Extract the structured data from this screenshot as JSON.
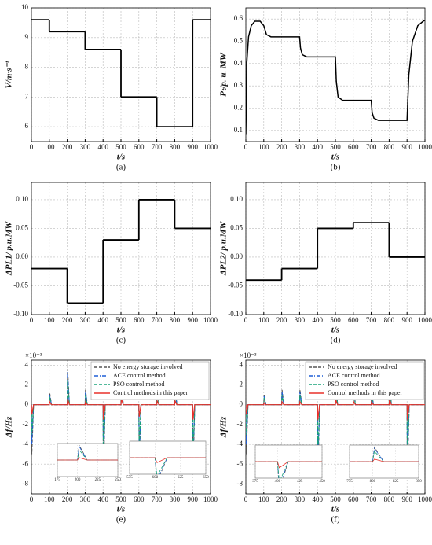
{
  "chart_data": [
    {
      "type": "step",
      "caption": "(a)",
      "ylabel": "V/m·s⁻¹",
      "xlabel": "t/s",
      "color": "#000000",
      "grid": true,
      "x": [
        0,
        100,
        300,
        500,
        700,
        900
      ],
      "values": [
        9.6,
        9.2,
        8.6,
        7.0,
        6.0,
        9.6
      ],
      "xlim": [
        0,
        1000
      ],
      "xticks": [
        0,
        100,
        200,
        300,
        400,
        500,
        600,
        700,
        800,
        900,
        1000
      ],
      "ylim": [
        5.5,
        10
      ],
      "yticks": [
        6,
        7,
        8,
        9,
        10
      ]
    },
    {
      "type": "line",
      "caption": "(b)",
      "ylabel": "Pₜ/p. u. MW",
      "xlabel": "t/s",
      "color": "#000000",
      "grid": true,
      "x": [
        0,
        5,
        15,
        30,
        50,
        80,
        100,
        115,
        140,
        300,
        305,
        315,
        340,
        500,
        505,
        515,
        540,
        700,
        705,
        715,
        740,
        900,
        910,
        930,
        960,
        990,
        1000
      ],
      "values": [
        0.08,
        0.4,
        0.52,
        0.57,
        0.59,
        0.59,
        0.57,
        0.53,
        0.52,
        0.52,
        0.47,
        0.44,
        0.43,
        0.43,
        0.32,
        0.25,
        0.235,
        0.235,
        0.18,
        0.155,
        0.145,
        0.145,
        0.35,
        0.5,
        0.57,
        0.59,
        0.595
      ],
      "xlim": [
        0,
        1000
      ],
      "xticks": [
        0,
        100,
        200,
        300,
        400,
        500,
        600,
        700,
        800,
        900,
        1000
      ],
      "ylim": [
        0.05,
        0.65
      ],
      "yticks": [
        {
          "value": 0.1,
          "label": "0.1"
        },
        {
          "value": 0.2,
          "label": "0.2"
        },
        {
          "value": 0.3,
          "label": "0.3"
        },
        {
          "value": 0.4,
          "label": "0.4"
        },
        {
          "value": 0.5,
          "label": "0.5"
        },
        {
          "value": 0.6,
          "label": "0.6"
        }
      ]
    },
    {
      "type": "step",
      "caption": "(c)",
      "ylabel": "ΔPL1/ p.u.MW",
      "xlabel": "t/s",
      "color": "#000000",
      "grid": true,
      "x": [
        0,
        200,
        400,
        600,
        800
      ],
      "values": [
        -0.02,
        -0.08,
        0.03,
        0.1,
        0.05
      ],
      "xlim": [
        0,
        1000
      ],
      "xticks": [
        0,
        100,
        200,
        300,
        400,
        500,
        600,
        700,
        800,
        900,
        1000
      ],
      "ylim": [
        -0.1,
        0.13
      ],
      "yticks": [
        {
          "value": -0.1,
          "label": "-0.10"
        },
        {
          "value": -0.05,
          "label": "-0.05"
        },
        {
          "value": 0,
          "label": "0.00"
        },
        {
          "value": 0.05,
          "label": "0.05"
        },
        {
          "value": 0.1,
          "label": "0.10"
        }
      ]
    },
    {
      "type": "step",
      "caption": "(d)",
      "ylabel": "ΔPL2/ p.u.MW",
      "xlabel": "t/s",
      "color": "#000000",
      "grid": true,
      "x": [
        0,
        200,
        400,
        600,
        800
      ],
      "values": [
        -0.04,
        -0.02,
        0.05,
        0.06,
        0.0
      ],
      "xlim": [
        0,
        1000
      ],
      "xticks": [
        0,
        100,
        200,
        300,
        400,
        500,
        600,
        700,
        800,
        900,
        1000
      ],
      "ylim": [
        -0.1,
        0.13
      ],
      "yticks": [
        {
          "value": -0.1,
          "label": "-0.10"
        },
        {
          "value": -0.05,
          "label": "-0.05"
        },
        {
          "value": 0,
          "label": "0.00"
        },
        {
          "value": 0.05,
          "label": "0.05"
        },
        {
          "value": 0.1,
          "label": "0.10"
        }
      ]
    },
    {
      "type": "line",
      "caption": "(e)",
      "ylabel": "Δf/Hz",
      "xlabel": "t/s",
      "y_multiplier": "×10⁻³",
      "grid": true,
      "legend": "upper right",
      "x": [
        0,
        2,
        12,
        100,
        102,
        112,
        200,
        202,
        212,
        300,
        302,
        312,
        400,
        402,
        412,
        500,
        502,
        512,
        600,
        602,
        612,
        700,
        702,
        712,
        800,
        802,
        812,
        900,
        902,
        912,
        1000
      ],
      "series": [
        {
          "name": "No energy storage involved",
          "color": "#555555",
          "dash": "dashed",
          "values": [
            0,
            -5,
            0,
            0,
            1.2,
            0,
            0,
            3.6,
            0,
            0,
            1.5,
            0,
            0,
            -7,
            0,
            0,
            3.6,
            0,
            0,
            -6,
            0,
            0,
            2,
            0,
            0,
            2,
            0,
            0,
            -7,
            0,
            0
          ]
        },
        {
          "name": "ACE control method",
          "color": "#1f5fd6",
          "dash": "dashdot",
          "values": [
            0,
            -4,
            0,
            0,
            1,
            0,
            0,
            3.3,
            0,
            0,
            1.3,
            0,
            0,
            -6,
            0,
            0,
            3.3,
            0,
            0,
            -5.5,
            0,
            0,
            1.8,
            0,
            0,
            1.8,
            0,
            0,
            -6,
            0,
            0
          ]
        },
        {
          "name": "PSO control method",
          "color": "#1aa37a",
          "dash": "dashed",
          "values": [
            0,
            -3,
            0,
            0,
            0.8,
            0,
            0,
            2.5,
            0,
            0,
            1,
            0,
            0,
            -5,
            0,
            0,
            2.5,
            0,
            0,
            -4.5,
            0,
            0,
            1.5,
            0,
            0,
            1.5,
            0,
            0,
            -5,
            0,
            0
          ]
        },
        {
          "name": "Control methods in this paper",
          "color": "#e8302a",
          "dash": "solid",
          "values": [
            0,
            -1,
            0,
            0,
            0.3,
            0,
            0,
            0.6,
            0,
            0,
            0.3,
            0,
            0,
            -1.5,
            0,
            0,
            0.6,
            0,
            0,
            -1.2,
            0,
            0,
            0.4,
            0,
            0,
            0.4,
            0,
            0,
            -1.5,
            0,
            0
          ]
        }
      ],
      "insets": [
        {
          "xlim": [
            175,
            250
          ],
          "xticks": [
            175,
            200,
            225,
            250
          ],
          "ylim": [
            -4,
            4
          ]
        },
        {
          "xlim": [
            575,
            650
          ],
          "xticks": [
            575,
            600,
            625,
            650
          ],
          "ylim": [
            -4,
            4
          ]
        }
      ],
      "xlim": [
        0,
        1000
      ],
      "xticks": [
        0,
        100,
        200,
        300,
        400,
        500,
        600,
        700,
        800,
        900,
        1000
      ],
      "ylim": [
        -9,
        4.5
      ],
      "yticks": [
        -8,
        -6,
        -4,
        -2,
        0,
        2,
        4
      ]
    },
    {
      "type": "line",
      "caption": "(f)",
      "ylabel": "Δf/Hz",
      "xlabel": "t/s",
      "y_multiplier": "×10⁻³",
      "grid": true,
      "legend": "upper right",
      "x": [
        0,
        2,
        12,
        100,
        102,
        112,
        200,
        202,
        212,
        300,
        302,
        312,
        400,
        402,
        412,
        500,
        502,
        512,
        600,
        602,
        612,
        700,
        702,
        712,
        800,
        802,
        812,
        900,
        902,
        912,
        1000
      ],
      "series": [
        {
          "name": "No energy storage involved",
          "color": "#555555",
          "dash": "dashed",
          "values": [
            0,
            -5,
            0,
            0,
            1,
            0,
            0,
            1.5,
            0,
            0,
            1.5,
            0,
            0,
            -7,
            0,
            0,
            3,
            0,
            0,
            1.5,
            0,
            0,
            1.5,
            0,
            0,
            3.5,
            0,
            0,
            -7,
            0,
            0
          ]
        },
        {
          "name": "ACE control method",
          "color": "#1f5fd6",
          "dash": "dashdot",
          "values": [
            0,
            -4,
            0,
            0,
            0.9,
            0,
            0,
            1.3,
            0,
            0,
            1.3,
            0,
            0,
            -6,
            0,
            0,
            2.7,
            0,
            0,
            1.3,
            0,
            0,
            1.3,
            0,
            0,
            3.2,
            0,
            0,
            -6,
            0,
            0
          ]
        },
        {
          "name": "PSO control method",
          "color": "#1aa37a",
          "dash": "dashed",
          "values": [
            0,
            -3,
            0,
            0,
            0.7,
            0,
            0,
            1,
            0,
            0,
            1,
            0,
            0,
            -5,
            0,
            0,
            2,
            0,
            0,
            1,
            0,
            0,
            1,
            0,
            0,
            2.5,
            0,
            0,
            -5,
            0,
            0
          ]
        },
        {
          "name": "Control methods in this paper",
          "color": "#e8302a",
          "dash": "solid",
          "values": [
            0,
            -1,
            0,
            0,
            0.2,
            0,
            0,
            0.3,
            0,
            0,
            0.3,
            0,
            0,
            -1.5,
            0,
            0,
            0.5,
            0,
            0,
            0.3,
            0,
            0,
            0.3,
            0,
            0,
            0.6,
            0,
            0,
            -1.5,
            0,
            0
          ]
        }
      ],
      "insets": [
        {
          "xlim": [
            375,
            450
          ],
          "xticks": [
            375,
            400,
            425,
            450
          ],
          "ylim": [
            -4,
            4
          ]
        },
        {
          "xlim": [
            775,
            850
          ],
          "xticks": [
            775,
            800,
            825,
            850
          ],
          "ylim": [
            -4,
            4
          ]
        }
      ],
      "xlim": [
        0,
        1000
      ],
      "xticks": [
        0,
        100,
        200,
        300,
        400,
        500,
        600,
        700,
        800,
        900,
        1000
      ],
      "ylim": [
        -9,
        4.5
      ],
      "yticks": [
        -8,
        -6,
        -4,
        -2,
        0,
        2,
        4
      ]
    }
  ]
}
